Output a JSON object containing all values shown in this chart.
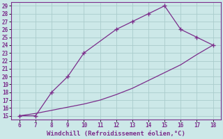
{
  "xlabel": "Windchill (Refroidissement éolien,°C)",
  "line1_x": [
    6,
    7,
    8,
    9,
    10,
    12,
    13,
    14,
    15,
    16,
    17,
    18
  ],
  "line1_y": [
    15,
    15,
    18,
    20,
    23,
    26,
    27,
    28,
    29,
    26,
    25,
    24
  ],
  "line2_x": [
    6,
    7,
    8,
    9,
    10,
    11,
    12,
    13,
    14,
    15,
    16,
    17,
    18
  ],
  "line2_y": [
    15,
    15.3,
    15.7,
    16.1,
    16.5,
    17.0,
    17.7,
    18.5,
    19.5,
    20.5,
    21.5,
    22.8,
    24
  ],
  "line_color": "#7b2d8b",
  "marker": "+",
  "bg_color": "#cce8e8",
  "grid_color": "#aacccc",
  "tick_label_color": "#7b2d8b",
  "xlabel_color": "#7b2d8b",
  "xlim": [
    5.5,
    18.5
  ],
  "ylim": [
    14.5,
    29.5
  ],
  "xticks": [
    6,
    7,
    8,
    9,
    10,
    11,
    12,
    13,
    14,
    15,
    16,
    17,
    18
  ],
  "yticks": [
    15,
    16,
    17,
    18,
    19,
    20,
    21,
    22,
    23,
    24,
    25,
    26,
    27,
    28,
    29
  ]
}
